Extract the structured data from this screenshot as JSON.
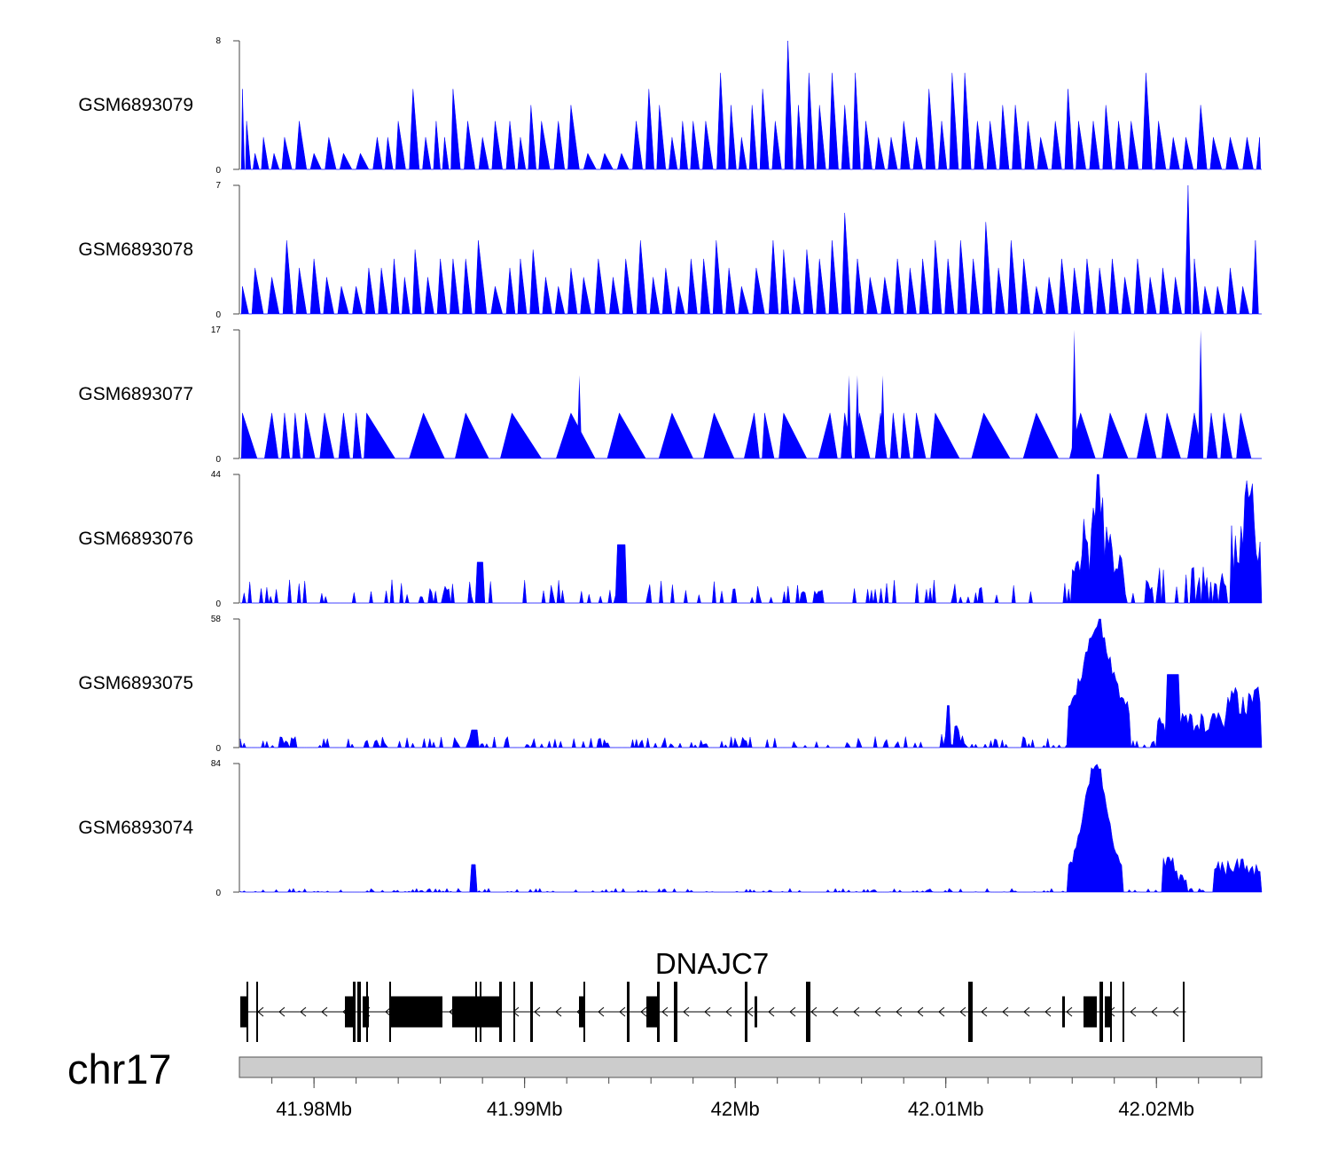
{
  "chart_data": {
    "type": "area",
    "title": "",
    "chromosome": "chr17",
    "xlabel": "",
    "xlim": [
      41.9765,
      42.025
    ],
    "x_unit": "Mb",
    "x_ticks": [
      {
        "value": 41.98,
        "label": "41.98Mb"
      },
      {
        "value": 41.99,
        "label": "41.99Mb"
      },
      {
        "value": 42.0,
        "label": "42Mb"
      },
      {
        "value": 42.01,
        "label": "42.01Mb"
      },
      {
        "value": 42.02,
        "label": "42.02Mb"
      }
    ],
    "fill_color": "#0000ff",
    "tracks": [
      {
        "name": "GSM6893079",
        "ymax": 8,
        "ymin": 0,
        "peaks": [
          [
            41.9766,
            5
          ],
          [
            41.9768,
            3
          ],
          [
            41.9772,
            1
          ],
          [
            41.9776,
            2
          ],
          [
            41.9781,
            1
          ],
          [
            41.9786,
            2
          ],
          [
            41.9793,
            3
          ],
          [
            41.98,
            1
          ],
          [
            41.9807,
            2
          ],
          [
            41.9814,
            1
          ],
          [
            41.9822,
            1
          ],
          [
            41.983,
            2
          ],
          [
            41.9835,
            2
          ],
          [
            41.984,
            3
          ],
          [
            41.9847,
            5
          ],
          [
            41.9853,
            2
          ],
          [
            41.9858,
            3
          ],
          [
            41.9862,
            2
          ],
          [
            41.9866,
            5
          ],
          [
            41.9873,
            3
          ],
          [
            41.988,
            2
          ],
          [
            41.9886,
            3
          ],
          [
            41.9893,
            3
          ],
          [
            41.9898,
            2
          ],
          [
            41.9903,
            4
          ],
          [
            41.9908,
            3
          ],
          [
            41.9916,
            3
          ],
          [
            41.9922,
            4
          ],
          [
            41.993,
            1
          ],
          [
            41.9938,
            1
          ],
          [
            41.9946,
            1
          ],
          [
            41.9953,
            3
          ],
          [
            41.9959,
            5
          ],
          [
            41.9964,
            4
          ],
          [
            41.997,
            2
          ],
          [
            41.9975,
            3
          ],
          [
            41.998,
            3
          ],
          [
            41.9986,
            3
          ],
          [
            41.9993,
            6
          ],
          [
            41.9998,
            4
          ],
          [
            42.0003,
            2
          ],
          [
            42.0008,
            4
          ],
          [
            42.0013,
            5
          ],
          [
            42.0019,
            3
          ],
          [
            42.0025,
            8
          ],
          [
            42.003,
            4
          ],
          [
            42.0035,
            6
          ],
          [
            42.004,
            4
          ],
          [
            42.0046,
            6
          ],
          [
            42.0052,
            4
          ],
          [
            42.0057,
            6
          ],
          [
            42.0062,
            3
          ],
          [
            42.0068,
            2
          ],
          [
            42.0074,
            2
          ],
          [
            42.008,
            3
          ],
          [
            42.0086,
            2
          ],
          [
            42.0092,
            5
          ],
          [
            42.0098,
            3
          ],
          [
            42.0103,
            6
          ],
          [
            42.0109,
            6
          ],
          [
            42.0115,
            3
          ],
          [
            42.0121,
            3
          ],
          [
            42.0127,
            4
          ],
          [
            42.0133,
            4
          ],
          [
            42.0139,
            3
          ],
          [
            42.0145,
            2
          ],
          [
            42.0152,
            3
          ],
          [
            42.0158,
            5
          ],
          [
            42.0163,
            3
          ],
          [
            42.017,
            3
          ],
          [
            42.0176,
            4
          ],
          [
            42.0182,
            3
          ],
          [
            42.0188,
            3
          ],
          [
            42.0195,
            6
          ],
          [
            42.0201,
            3
          ],
          [
            42.0208,
            2
          ],
          [
            42.0214,
            2
          ],
          [
            42.0221,
            4
          ],
          [
            42.0227,
            2
          ],
          [
            42.0235,
            2
          ],
          [
            42.0243,
            2
          ],
          [
            42.0249,
            2
          ]
        ]
      },
      {
        "name": "GSM6893078",
        "ymax": 7,
        "ymin": 0,
        "peaks": [
          [
            41.9766,
            1.5
          ],
          [
            41.9772,
            2.5
          ],
          [
            41.978,
            2
          ],
          [
            41.9787,
            4
          ],
          [
            41.9793,
            2.5
          ],
          [
            41.98,
            3
          ],
          [
            41.9806,
            2
          ],
          [
            41.9813,
            1.5
          ],
          [
            41.982,
            1.5
          ],
          [
            41.9826,
            2.5
          ],
          [
            41.9832,
            2.5
          ],
          [
            41.9838,
            3
          ],
          [
            41.9843,
            2
          ],
          [
            41.9848,
            3.5
          ],
          [
            41.9854,
            2
          ],
          [
            41.986,
            3
          ],
          [
            41.9866,
            3
          ],
          [
            41.9872,
            3
          ],
          [
            41.9878,
            4
          ],
          [
            41.9886,
            1.5
          ],
          [
            41.9893,
            2.5
          ],
          [
            41.9898,
            3
          ],
          [
            41.9904,
            3.5
          ],
          [
            41.991,
            2
          ],
          [
            41.9916,
            1.5
          ],
          [
            41.9922,
            2.5
          ],
          [
            41.9928,
            2
          ],
          [
            41.9935,
            3
          ],
          [
            41.9942,
            2
          ],
          [
            41.9948,
            3
          ],
          [
            41.9955,
            4
          ],
          [
            41.9961,
            2
          ],
          [
            41.9967,
            2.5
          ],
          [
            41.9973,
            1.5
          ],
          [
            41.9979,
            3
          ],
          [
            41.9985,
            3
          ],
          [
            41.9991,
            4
          ],
          [
            41.9997,
            2.5
          ],
          [
            42.0003,
            1.5
          ],
          [
            42.001,
            2.5
          ],
          [
            42.0018,
            4
          ],
          [
            42.0023,
            3.5
          ],
          [
            42.0028,
            2
          ],
          [
            42.0034,
            3.5
          ],
          [
            42.004,
            3
          ],
          [
            42.0046,
            4
          ],
          [
            42.0052,
            5.5
          ],
          [
            42.0058,
            3
          ],
          [
            42.0064,
            2
          ],
          [
            42.0071,
            2
          ],
          [
            42.0077,
            3
          ],
          [
            42.0083,
            2.5
          ],
          [
            42.0089,
            3
          ],
          [
            42.0095,
            4
          ],
          [
            42.0101,
            3
          ],
          [
            42.0107,
            4
          ],
          [
            42.0113,
            3
          ],
          [
            42.0119,
            5
          ],
          [
            42.0125,
            2.5
          ],
          [
            42.0131,
            4
          ],
          [
            42.0137,
            3
          ],
          [
            42.0143,
            1.5
          ],
          [
            42.0149,
            2
          ],
          [
            42.0155,
            3
          ],
          [
            42.0161,
            2.5
          ],
          [
            42.0167,
            3
          ],
          [
            42.0173,
            2.5
          ],
          [
            42.0179,
            3
          ],
          [
            42.0185,
            2
          ],
          [
            42.0191,
            3
          ],
          [
            42.0197,
            2
          ],
          [
            42.0203,
            2.5
          ],
          [
            42.0209,
            2
          ],
          [
            42.0215,
            7
          ],
          [
            42.0218,
            3
          ],
          [
            42.0223,
            1.5
          ],
          [
            42.0229,
            1.5
          ],
          [
            42.0235,
            2.5
          ],
          [
            42.0241,
            1.5
          ],
          [
            42.0247,
            4
          ]
        ]
      },
      {
        "name": "GSM6893077",
        "ymax": 17,
        "ymin": 0,
        "peaks": [
          [
            41.9766,
            6
          ],
          [
            41.978,
            6
          ],
          [
            41.9786,
            6
          ],
          [
            41.9791,
            6
          ],
          [
            41.9796,
            6
          ],
          [
            41.9805,
            6
          ],
          [
            41.9814,
            6
          ],
          [
            41.982,
            6
          ],
          [
            41.9825,
            6
          ],
          [
            41.9852,
            6
          ],
          [
            41.9872,
            6
          ],
          [
            41.9894,
            6
          ],
          [
            41.9922,
            6
          ],
          [
            41.9945,
            6
          ],
          [
            41.997,
            6
          ],
          [
            41.999,
            6
          ],
          [
            42.0009,
            6
          ],
          [
            42.0014,
            6
          ],
          [
            42.0023,
            6
          ],
          [
            42.0045,
            6
          ],
          [
            42.0052,
            6
          ],
          [
            42.0059,
            6
          ],
          [
            42.0069,
            6
          ],
          [
            42.0075,
            6
          ],
          [
            42.008,
            6
          ],
          [
            42.0086,
            6
          ],
          [
            42.0095,
            6
          ],
          [
            42.0118,
            6
          ],
          [
            42.0143,
            6
          ],
          [
            42.0164,
            6
          ],
          [
            42.0178,
            6
          ],
          [
            42.0195,
            6
          ],
          [
            42.0205,
            6
          ],
          [
            42.0218,
            6
          ],
          [
            42.0226,
            6
          ],
          [
            42.0232,
            6
          ],
          [
            42.024,
            6
          ]
        ],
        "spikes": [
          [
            41.9926,
            11
          ],
          [
            42.0054,
            11
          ],
          [
            42.0058,
            11
          ],
          [
            42.007,
            11
          ],
          [
            42.0161,
            17
          ],
          [
            42.0221,
            17
          ]
        ]
      },
      {
        "name": "GSM6893076",
        "ymax": 44,
        "ymin": 0
      },
      {
        "name": "GSM6893075",
        "ymax": 58,
        "ymin": 0
      },
      {
        "name": "GSM6893074",
        "ymax": 84,
        "ymin": 0
      }
    ],
    "gene": {
      "name": "DNAJC7",
      "strand": "-",
      "tx_start": 41.9765,
      "tx_end": 42.0214,
      "color": "#000000"
    }
  }
}
